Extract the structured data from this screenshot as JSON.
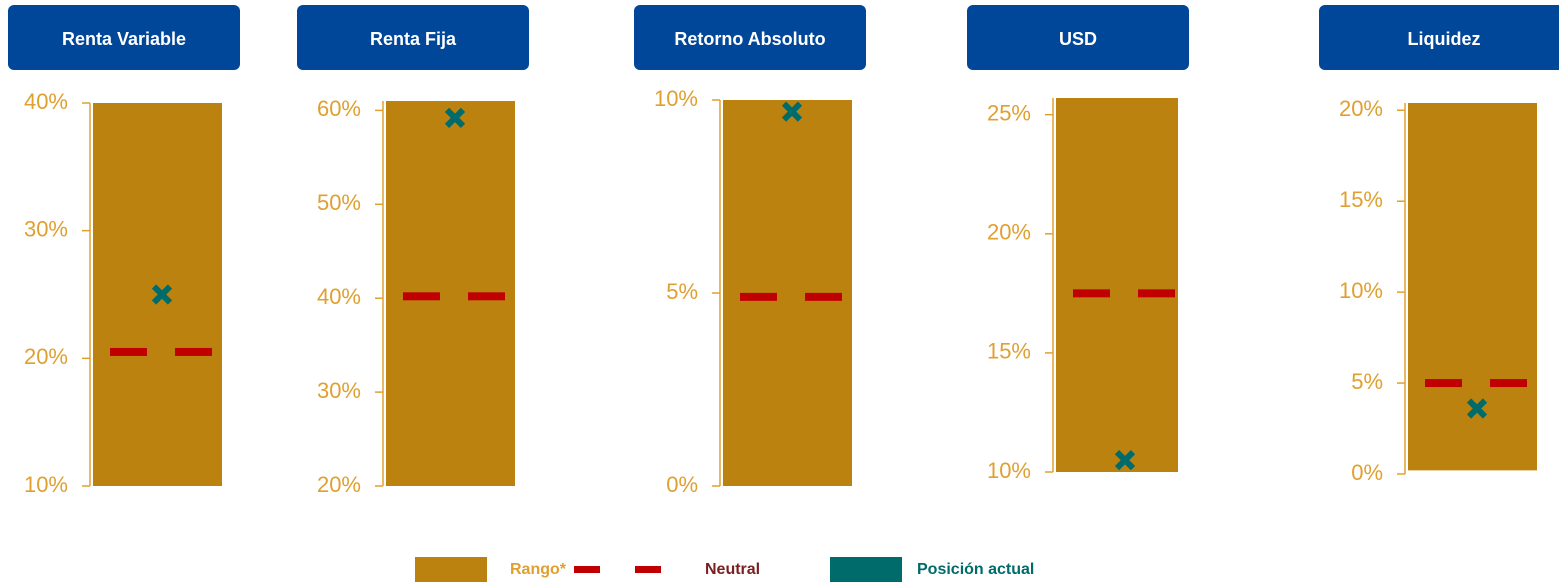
{
  "chart_data": [
    {
      "type": "range",
      "title": "Renta Variable",
      "ylim": [
        10,
        40
      ],
      "yticks": [
        {
          "value": 10,
          "label": "10%"
        },
        {
          "value": 20,
          "label": "20%"
        },
        {
          "value": 30,
          "label": "30%"
        },
        {
          "value": 40,
          "label": "40%"
        }
      ],
      "range": [
        10,
        40
      ],
      "neutral": 20.5,
      "position": 25
    },
    {
      "type": "range",
      "title": "Renta Fija",
      "ylim": [
        20,
        61
      ],
      "yticks": [
        {
          "value": 20,
          "label": "20%"
        },
        {
          "value": 30,
          "label": "30%"
        },
        {
          "value": 40,
          "label": "40%"
        },
        {
          "value": 50,
          "label": "50%"
        },
        {
          "value": 60,
          "label": "60%"
        }
      ],
      "range": [
        20,
        61
      ],
      "neutral": 40.2,
      "position": 59.2
    },
    {
      "type": "range",
      "title": "Retorno Absoluto",
      "ylim": [
        0,
        10
      ],
      "yticks": [
        {
          "value": 0,
          "label": "0%"
        },
        {
          "value": 5,
          "label": "5%"
        },
        {
          "value": 10,
          "label": "10%"
        }
      ],
      "range": [
        0,
        10
      ],
      "neutral": 4.9,
      "position": 9.7
    },
    {
      "type": "range",
      "title": "USD",
      "ylim": [
        10,
        25.7
      ],
      "yticks": [
        {
          "value": 10,
          "label": "10%"
        },
        {
          "value": 15,
          "label": "15%"
        },
        {
          "value": 20,
          "label": "20%"
        },
        {
          "value": 25,
          "label": "25%"
        }
      ],
      "range": [
        10,
        25.7
      ],
      "neutral": 17.5,
      "position": 10.5
    },
    {
      "type": "range",
      "title": "Liquidez",
      "ylim": [
        0,
        20.4
      ],
      "yticks": [
        {
          "value": 0,
          "label": "0%"
        },
        {
          "value": 5,
          "label": "5%"
        },
        {
          "value": 10,
          "label": "10%"
        },
        {
          "value": 15,
          "label": "15%"
        },
        {
          "value": 20,
          "label": "20%"
        }
      ],
      "range": [
        0.2,
        20.4
      ],
      "neutral": 5,
      "position": 3.6
    }
  ],
  "colors": {
    "range": "#bc8210",
    "neutral": "#c00000",
    "position": "#006b6b",
    "header": "#00479a"
  },
  "legend": {
    "range": "Rango*",
    "neutral": "Neutral",
    "position": "Posición actual"
  }
}
